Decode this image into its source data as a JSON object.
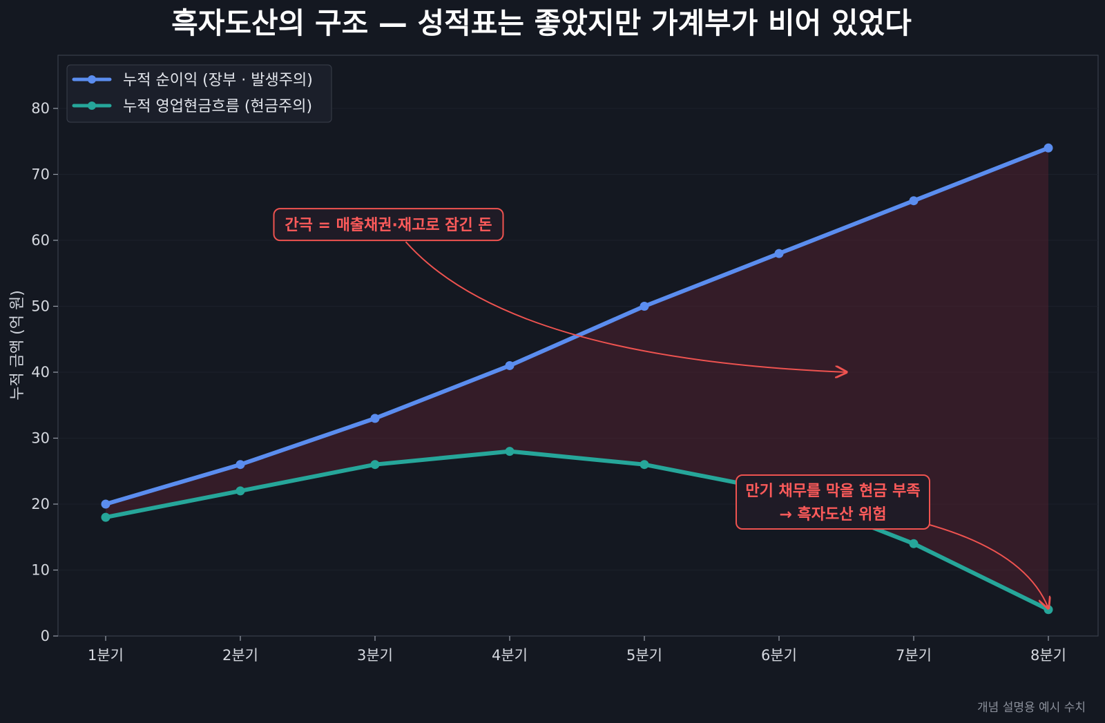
{
  "colors": {
    "background": "#141821",
    "plot_border": "#3a3f4b",
    "grid": "#1c212b",
    "net_income": "#5b8def",
    "cash_flow": "#26a69a",
    "gap_fill": "#5a2230",
    "annotation": "#ef5350",
    "annotation_text": "#ff5b5b",
    "legend_bg": "#1b1f2a"
  },
  "chart_data": {
    "type": "line",
    "title": "흑자도산의 구조 — 성적표는 좋았지만 가계부가 비어 있었다",
    "xlabel": "",
    "ylabel": "누적 금액 (억 원)",
    "categories": [
      "1분기",
      "2분기",
      "3분기",
      "4분기",
      "5분기",
      "6분기",
      "7분기",
      "8분기"
    ],
    "ylim": [
      0,
      88
    ],
    "yticks": [
      0,
      10,
      20,
      30,
      40,
      50,
      60,
      70,
      80
    ],
    "grid": true,
    "legend_position": "top-left",
    "series": [
      {
        "name": "누적 순이익 (장부 · 발생주의)",
        "values": [
          20,
          26,
          33,
          41,
          50,
          58,
          66,
          74
        ]
      },
      {
        "name": "누적 영업현금흐름 (현금주의)",
        "values": [
          18,
          22,
          26,
          28,
          26,
          22,
          14,
          4
        ]
      }
    ],
    "annotations": [
      {
        "lines": [
          "간극 = 매출채권·재고로 잠긴 돈"
        ],
        "label_at": [
          3.1,
          62.5
        ],
        "arrow_to": [
          6.5,
          40
        ]
      },
      {
        "lines": [
          "만기 채무를 막을 현금 부족",
          "→ 흑자도산 위험"
        ],
        "label_at": [
          6.4,
          20
        ],
        "arrow_to": [
          8,
          4
        ]
      }
    ],
    "footnote": "개념 설명용 예시 수치"
  }
}
